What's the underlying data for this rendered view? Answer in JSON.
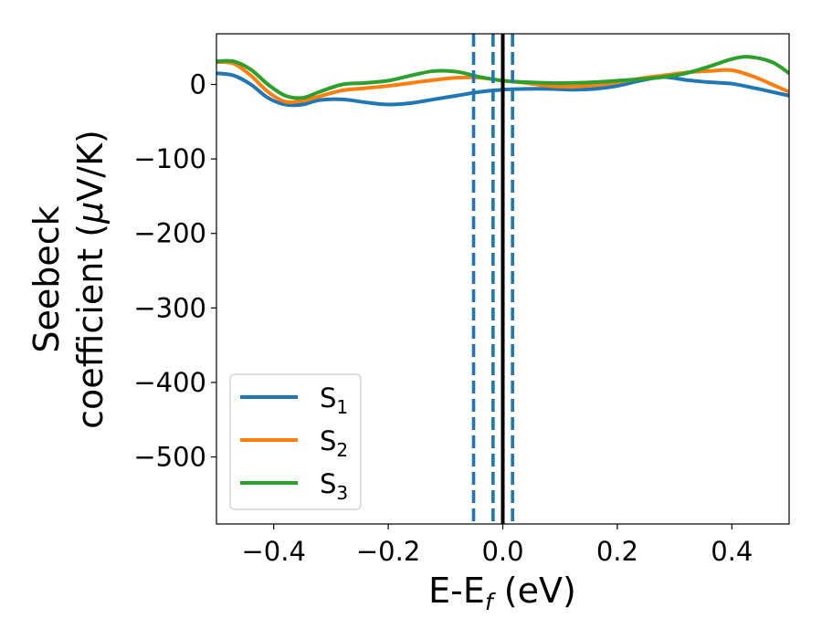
{
  "chart_data": {
    "type": "line",
    "xlabel": {
      "main": "E-E",
      "sub": "f",
      "rest": " (eV)"
    },
    "ylabel": {
      "line1": "Seebeck",
      "line2": "coefficient  (",
      "mu": "μ",
      "line2_end": "V/K)"
    },
    "xlim": [
      -0.5,
      0.5
    ],
    "ylim": [
      -590,
      68
    ],
    "xticks": [
      {
        "value": -0.4,
        "label": "−0.4"
      },
      {
        "value": -0.2,
        "label": "−0.2"
      },
      {
        "value": 0.0,
        "label": "0.0"
      },
      {
        "value": 0.2,
        "label": "0.2"
      },
      {
        "value": 0.4,
        "label": "0.4"
      }
    ],
    "yticks": [
      {
        "value": 0,
        "label": "0"
      },
      {
        "value": -100,
        "label": "−100"
      },
      {
        "value": -200,
        "label": "−200"
      },
      {
        "value": -300,
        "label": "−300"
      },
      {
        "value": -400,
        "label": "−400"
      },
      {
        "value": -500,
        "label": "−500"
      }
    ],
    "grid": false,
    "legend_position": "bottom-left",
    "series": [
      {
        "name": "S",
        "sub": "1",
        "color": "#1f77b4",
        "x": [
          -0.5,
          -0.47,
          -0.44,
          -0.41,
          -0.38,
          -0.35,
          -0.32,
          -0.28,
          -0.24,
          -0.2,
          -0.16,
          -0.12,
          -0.08,
          -0.04,
          0.0,
          0.04,
          0.08,
          0.12,
          0.16,
          0.2,
          0.24,
          0.28,
          0.32,
          0.36,
          0.4,
          0.44,
          0.47,
          0.5
        ],
        "y": [
          15,
          12,
          0,
          -18,
          -27,
          -27,
          -21,
          -20,
          -24,
          -27,
          -25,
          -20,
          -15,
          -10,
          -7,
          -6,
          -6,
          -7,
          -6,
          -2,
          5,
          10,
          6,
          3,
          1,
          -5,
          -10,
          -15
        ]
      },
      {
        "name": "S",
        "sub": "2",
        "color": "#ff7f0e",
        "x": [
          -0.5,
          -0.47,
          -0.44,
          -0.41,
          -0.38,
          -0.35,
          -0.32,
          -0.28,
          -0.24,
          -0.2,
          -0.16,
          -0.12,
          -0.08,
          -0.04,
          0.0,
          0.04,
          0.08,
          0.12,
          0.16,
          0.2,
          0.24,
          0.28,
          0.32,
          0.36,
          0.4,
          0.44,
          0.47,
          0.5
        ],
        "y": [
          30,
          28,
          12,
          -10,
          -23,
          -22,
          -16,
          -8,
          -5,
          -2,
          2,
          6,
          9,
          9,
          5,
          2,
          -2,
          -3,
          -1,
          3,
          8,
          12,
          16,
          18,
          19,
          10,
          0,
          -10
        ]
      },
      {
        "name": "S",
        "sub": "3",
        "color": "#2ca02c",
        "x": [
          -0.5,
          -0.47,
          -0.44,
          -0.41,
          -0.38,
          -0.35,
          -0.32,
          -0.28,
          -0.24,
          -0.2,
          -0.16,
          -0.12,
          -0.08,
          -0.04,
          0.0,
          0.04,
          0.08,
          0.12,
          0.16,
          0.2,
          0.24,
          0.28,
          0.32,
          0.36,
          0.4,
          0.43,
          0.47,
          0.5
        ],
        "y": [
          31,
          31,
          20,
          0,
          -15,
          -18,
          -10,
          0,
          2,
          5,
          12,
          18,
          17,
          10,
          5,
          3,
          2,
          2,
          3,
          5,
          7,
          10,
          15,
          24,
          34,
          37,
          30,
          15
        ]
      }
    ],
    "vlines": [
      {
        "x": 0.0,
        "style": "solid",
        "color": "#000000"
      },
      {
        "x": -0.051,
        "style": "dashed",
        "color": "#1f77b4"
      },
      {
        "x": -0.017,
        "style": "dashed",
        "color": "#1f77b4"
      },
      {
        "x": 0.017,
        "style": "dashed",
        "color": "#1f77b4"
      }
    ]
  }
}
